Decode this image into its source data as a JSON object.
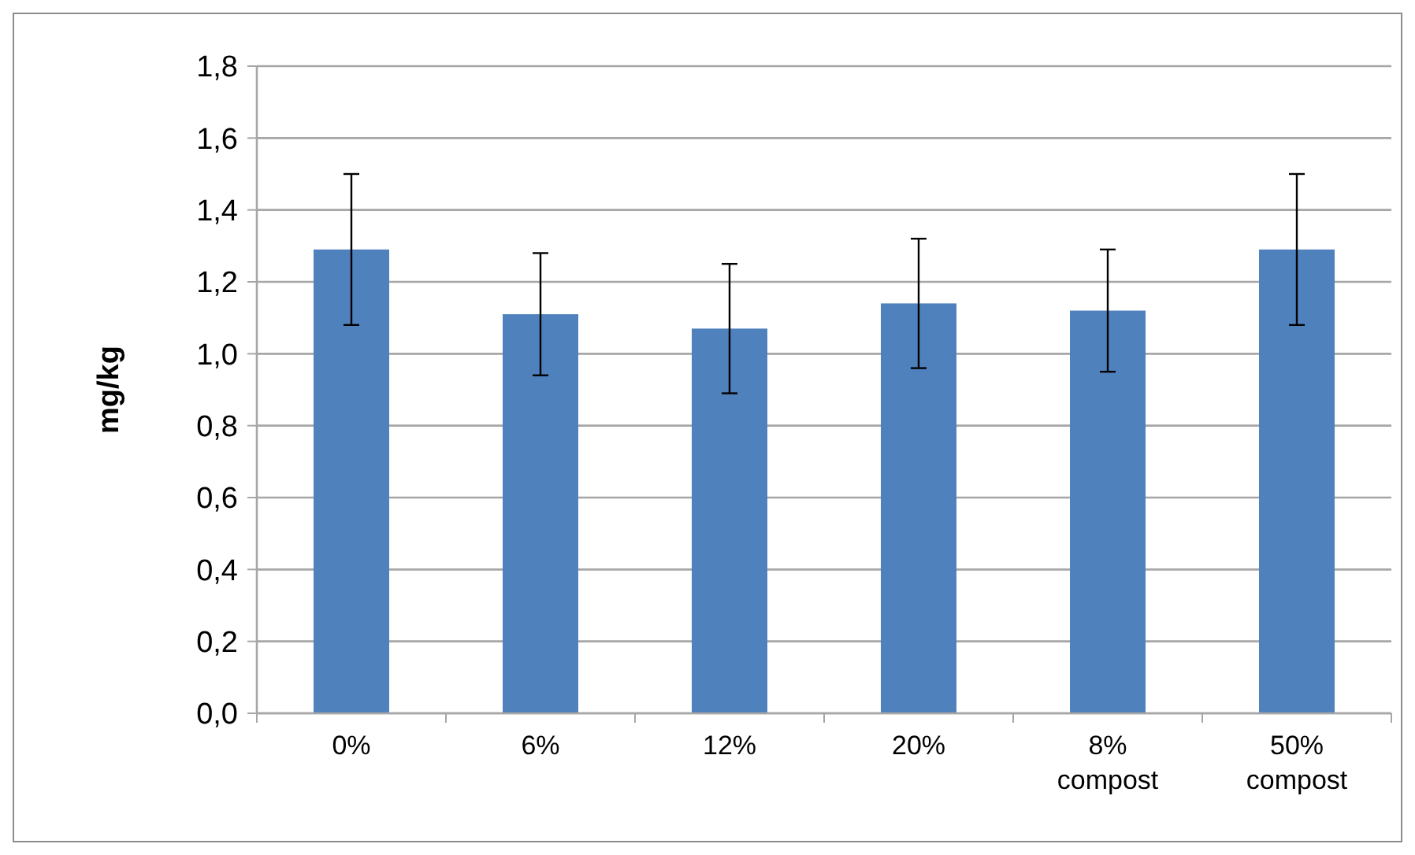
{
  "chart_data": {
    "type": "bar",
    "ylabel": "mg/kg",
    "categories": [
      "0%",
      "6%",
      "12%",
      "20%",
      "8%\ncompost",
      "50%\ncompost"
    ],
    "values": [
      1.29,
      1.11,
      1.07,
      1.14,
      1.12,
      1.29
    ],
    "errors": [
      0.21,
      0.17,
      0.18,
      0.18,
      0.17,
      0.21
    ],
    "color": "#4f81bd",
    "ylim": [
      0,
      1.8
    ],
    "yticks": [
      {
        "value": 0,
        "label": "0,0"
      },
      {
        "value": 0.2,
        "label": "0,2"
      },
      {
        "value": 0.4,
        "label": "0,4"
      },
      {
        "value": 0.6,
        "label": "0,6"
      },
      {
        "value": 0.8,
        "label": "0,8"
      },
      {
        "value": 1,
        "label": "1,0"
      },
      {
        "value": 1.2,
        "label": "1,2"
      },
      {
        "value": 1.4,
        "label": "1,4"
      },
      {
        "value": 1.6,
        "label": "1,6"
      },
      {
        "value": 1.8,
        "label": "1,8"
      }
    ],
    "grid": "y"
  }
}
